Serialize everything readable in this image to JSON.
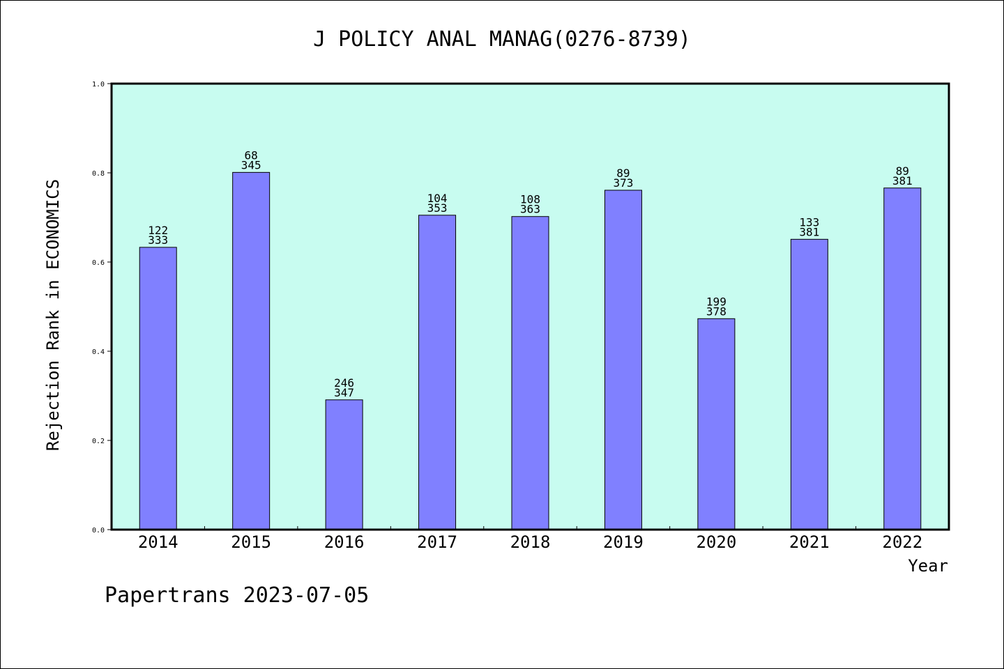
{
  "chart_data": {
    "type": "bar",
    "title": "J POLICY ANAL MANAG(0276-8739)",
    "xlabel": "Year",
    "ylabel": "Rejection Rank in ECONOMICS",
    "ylim": [
      0,
      1.0
    ],
    "yticks": [
      "0.0",
      "0.2",
      "0.4",
      "0.6",
      "0.8",
      "1.0"
    ],
    "categories": [
      "2014",
      "2015",
      "2016",
      "2017",
      "2018",
      "2019",
      "2020",
      "2021",
      "2022"
    ],
    "values": [
      0.633,
      0.801,
      0.291,
      0.705,
      0.702,
      0.761,
      0.473,
      0.651,
      0.766
    ],
    "labels_top": [
      "122",
      "68",
      "246",
      "104",
      "108",
      "89",
      "199",
      "133",
      "89"
    ],
    "labels_bottom": [
      "333",
      "345",
      "347",
      "353",
      "363",
      "373",
      "378",
      "381",
      "381"
    ],
    "grid": false,
    "legend": "none",
    "colors": {
      "bar": "#8080ff",
      "plot_background": "#c8fcf0",
      "axis": "#000000"
    }
  },
  "footer": "Papertrans 2023-07-05"
}
